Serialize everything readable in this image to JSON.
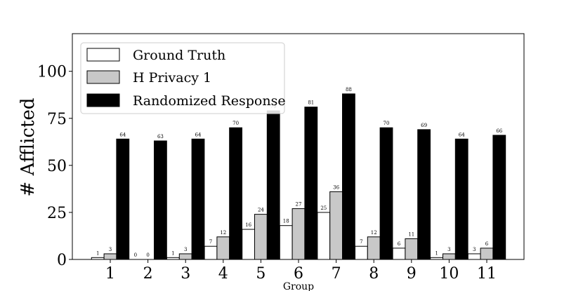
{
  "chart_data": {
    "type": "bar",
    "xlabel": "Group",
    "ylabel": "# Afflicted",
    "ylim": [
      0,
      120
    ],
    "yticks": [
      0,
      25,
      50,
      75,
      100
    ],
    "categories": [
      "1",
      "2",
      "3",
      "4",
      "5",
      "6",
      "7",
      "8",
      "9",
      "10",
      "11"
    ],
    "series": [
      {
        "name": "Ground Truth",
        "color": "#ffffff",
        "values": [
          1,
          0,
          1,
          7,
          16,
          18,
          25,
          7,
          6,
          1,
          3
        ]
      },
      {
        "name": "H Privacy 1",
        "color": "#c8c8c8",
        "values": [
          3,
          0,
          3,
          12,
          24,
          27,
          36,
          12,
          11,
          3,
          6
        ]
      },
      {
        "name": "Randomized Response",
        "color": "#000000",
        "values": [
          64,
          63,
          64,
          70,
          79,
          81,
          88,
          70,
          69,
          64,
          66
        ]
      }
    ],
    "legend_position": "top-left",
    "grid": false
  }
}
